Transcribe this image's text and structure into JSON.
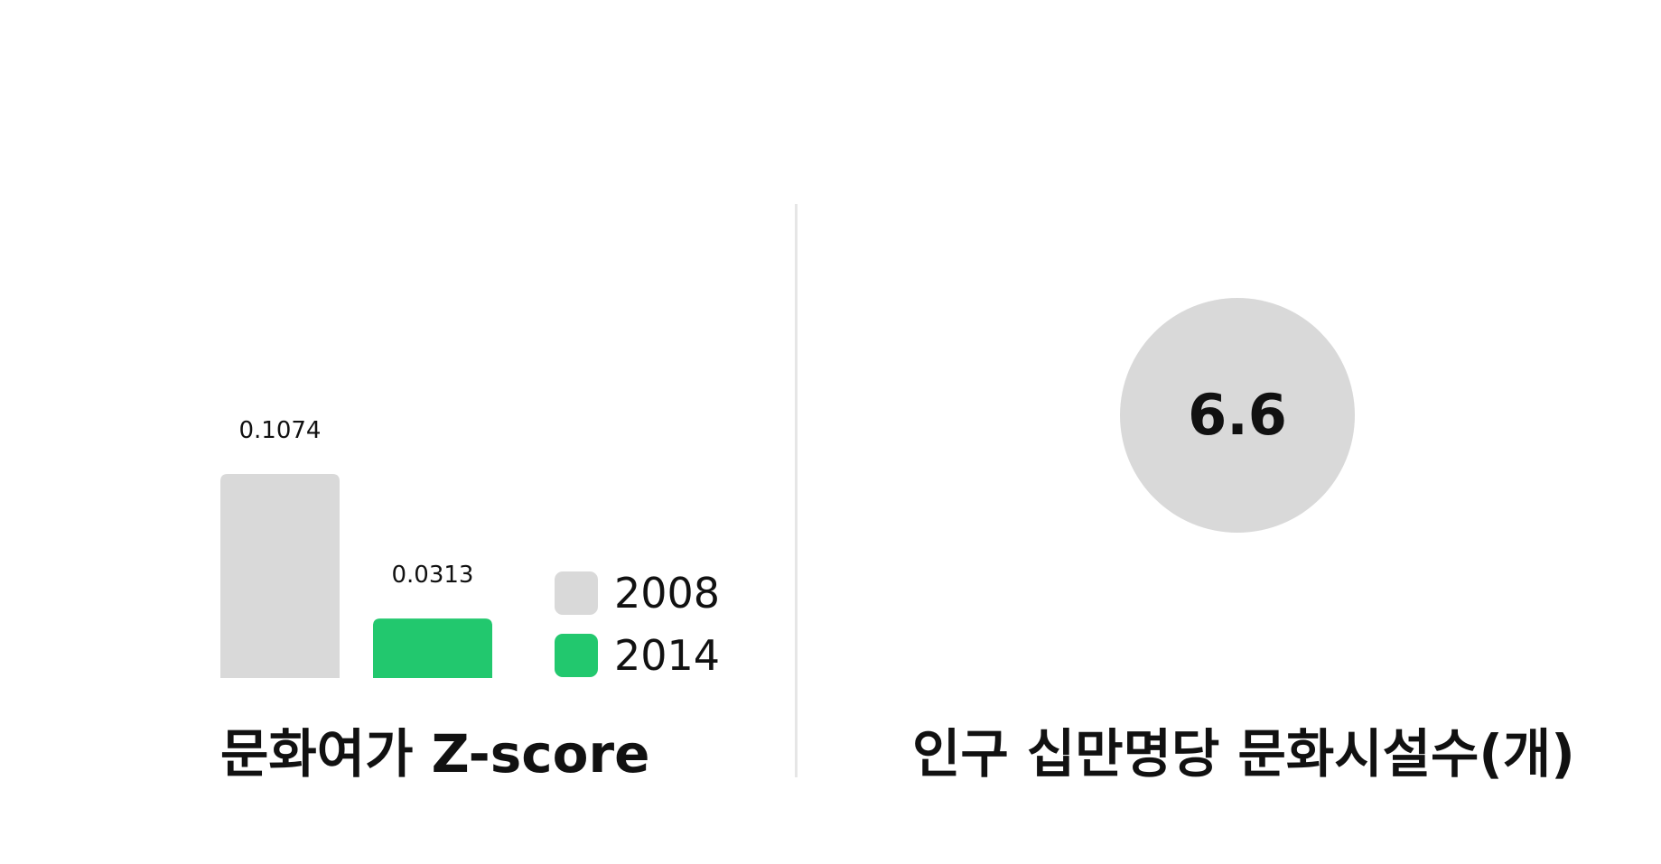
{
  "left_panel": {
    "title": "문화여가 Z-score",
    "legend": [
      {
        "label": "2008",
        "color": "#d9d9d9"
      },
      {
        "label": "2014",
        "color": "#22c86e"
      }
    ]
  },
  "right_panel": {
    "title": "인구 십만명당 문화시설수(개)",
    "value": "6.6",
    "circle_color": "#d9d9d9"
  },
  "chart_data": [
    {
      "type": "bar",
      "categories": [
        "2008",
        "2014"
      ],
      "values": [
        0.1074,
        0.0313
      ],
      "value_labels": [
        "0.1074",
        "0.0313"
      ],
      "colors": [
        "#d9d9d9",
        "#22c86e"
      ],
      "title": "문화여가 Z-score",
      "legend_position": "right",
      "grid": false
    }
  ]
}
